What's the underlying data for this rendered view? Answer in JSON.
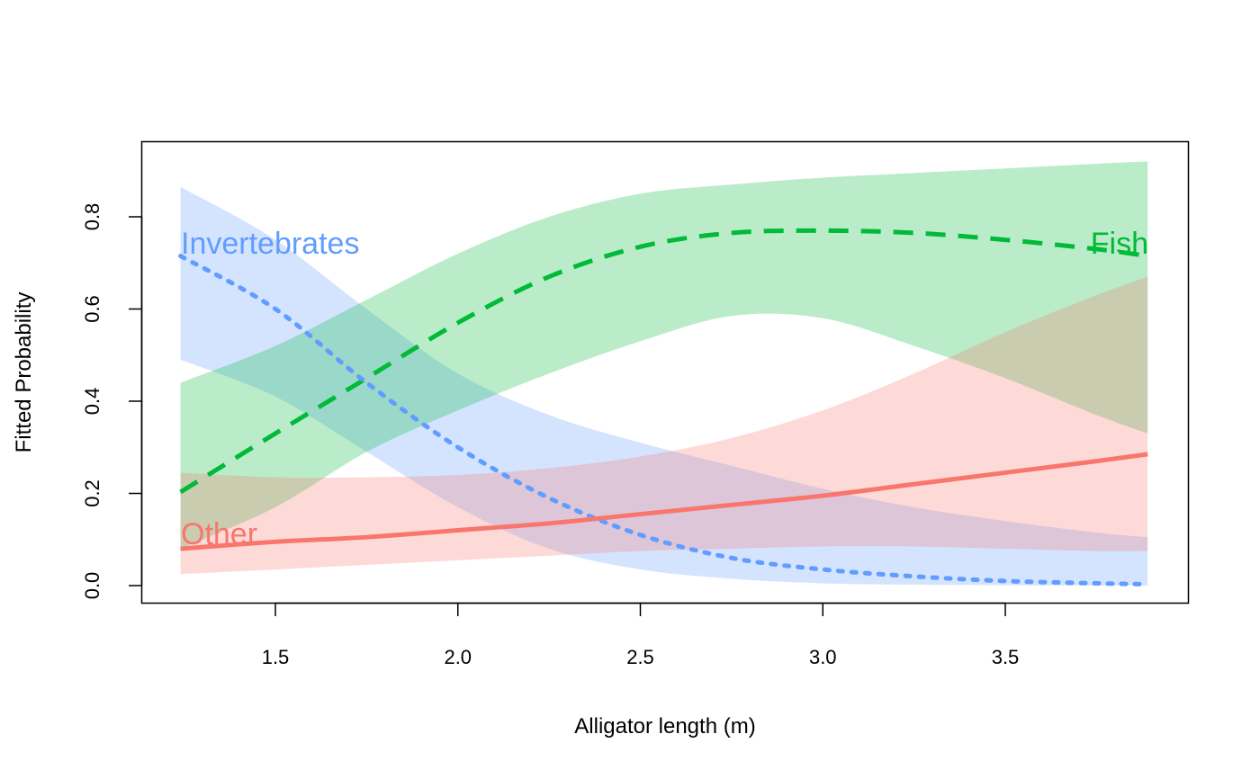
{
  "chart_data": {
    "type": "line",
    "title": "",
    "xlabel": "Alligator length (m)",
    "ylabel": "Fitted Probability",
    "xlim": [
      1.24,
      3.89
    ],
    "ylim": [
      0,
      0.92
    ],
    "xticks": [
      "1.5",
      "2.0",
      "2.5",
      "3.0",
      "3.5"
    ],
    "xtick_values": [
      1.5,
      2.0,
      2.5,
      3.0,
      3.5
    ],
    "yticks": [
      "0.0",
      "0.2",
      "0.4",
      "0.6",
      "0.8"
    ],
    "ytick_values": [
      0,
      0.2,
      0.4,
      0.6,
      0.8
    ],
    "grid": false,
    "x": [
      1.24,
      1.5,
      1.75,
      2.0,
      2.25,
      2.5,
      2.75,
      3.0,
      3.25,
      3.5,
      3.75,
      3.89
    ],
    "series": [
      {
        "name": "Fish",
        "label": "Fish",
        "color": "#00BA38",
        "linestyle": "dashed",
        "values": [
          0.203,
          0.33,
          0.45,
          0.57,
          0.67,
          0.735,
          0.765,
          0.77,
          0.765,
          0.75,
          0.73,
          0.715
        ],
        "lower": [
          0.08,
          0.17,
          0.29,
          0.38,
          0.46,
          0.53,
          0.585,
          0.58,
          0.52,
          0.45,
          0.37,
          0.33
        ],
        "upper": [
          0.44,
          0.52,
          0.62,
          0.72,
          0.8,
          0.85,
          0.87,
          0.885,
          0.895,
          0.905,
          0.915,
          0.92
        ]
      },
      {
        "name": "Invertebrates",
        "label": "Invertebrates",
        "color": "#619CFF",
        "linestyle": "dotted",
        "values": [
          0.715,
          0.6,
          0.44,
          0.3,
          0.19,
          0.11,
          0.06,
          0.035,
          0.02,
          0.01,
          0.005,
          0.003
        ],
        "lower": [
          0.49,
          0.41,
          0.29,
          0.17,
          0.08,
          0.035,
          0.015,
          0.005,
          0.002,
          0.001,
          0.0,
          0.0
        ],
        "upper": [
          0.865,
          0.75,
          0.6,
          0.46,
          0.37,
          0.31,
          0.26,
          0.21,
          0.17,
          0.14,
          0.115,
          0.105
        ]
      },
      {
        "name": "Other",
        "label": "Other",
        "color": "#F8766D",
        "linestyle": "solid",
        "values": [
          0.08,
          0.095,
          0.105,
          0.12,
          0.135,
          0.155,
          0.175,
          0.195,
          0.22,
          0.245,
          0.27,
          0.285
        ],
        "lower": [
          0.025,
          0.035,
          0.045,
          0.055,
          0.065,
          0.075,
          0.08,
          0.085,
          0.085,
          0.08,
          0.075,
          0.075
        ],
        "upper": [
          0.245,
          0.235,
          0.235,
          0.24,
          0.255,
          0.28,
          0.32,
          0.38,
          0.46,
          0.55,
          0.63,
          0.67
        ]
      }
    ]
  }
}
